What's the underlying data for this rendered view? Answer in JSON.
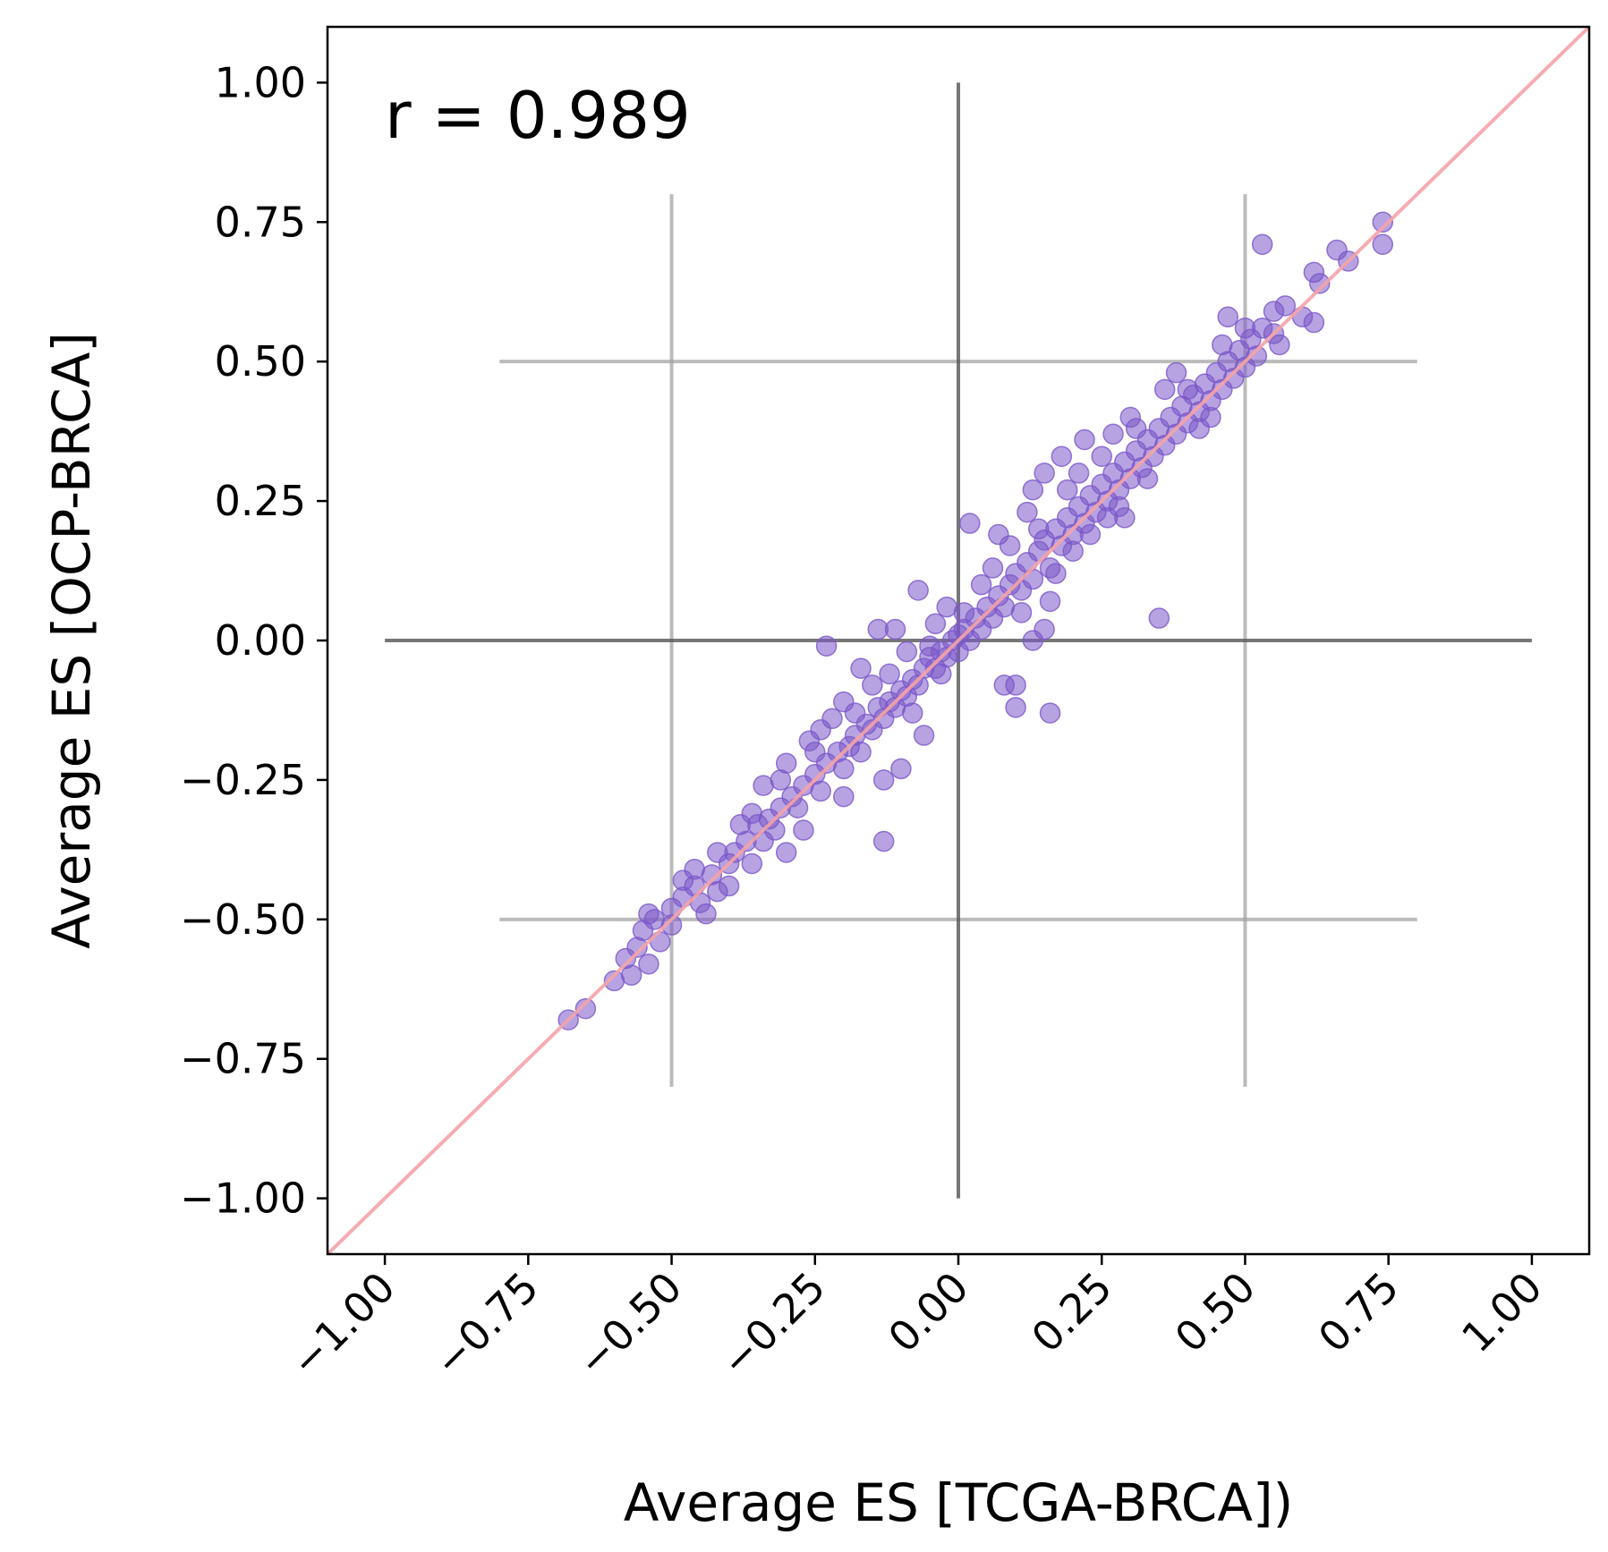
{
  "chart_data": {
    "type": "scatter",
    "xlabel": "Average ES [TCGA-BRCA])",
    "ylabel": "Average ES [OCP-BRCA]",
    "annotation": "r = 0.989",
    "xlim": [
      -1.1,
      1.1
    ],
    "ylim": [
      -1.1,
      1.1
    ],
    "xticks": [
      "−1.00",
      "−0.75",
      "−0.50",
      "−0.25",
      "0.00",
      "0.25",
      "0.50",
      "0.75",
      "1.00"
    ],
    "yticks": [
      "1.00",
      "0.75",
      "0.50",
      "0.25",
      "0.00",
      "−0.25",
      "−0.50",
      "−0.75",
      "−1.00"
    ],
    "grid": false,
    "colors": {
      "points": "#7b57c9",
      "identity_line": "#f4a3a8",
      "center_lines": "#555555",
      "guide_lines": "#9e9e9e"
    },
    "reference_lines": {
      "identity": [
        [
          -1.1,
          -1.1
        ],
        [
          1.1,
          1.1
        ]
      ],
      "center_vertical": {
        "x": 0,
        "y_range": [
          -1.0,
          1.0
        ]
      },
      "center_horizontal": {
        "y": 0,
        "x_range": [
          -1.0,
          1.0
        ]
      },
      "guide_vertical": [
        {
          "x": -0.5,
          "y_range": [
            -0.8,
            0.8
          ]
        },
        {
          "x": 0.5,
          "y_range": [
            -0.8,
            0.8
          ]
        }
      ],
      "guide_horizontal": [
        {
          "y": -0.5,
          "x_range": [
            -0.8,
            0.8
          ]
        },
        {
          "y": 0.5,
          "x_range": [
            -0.8,
            0.8
          ]
        }
      ]
    },
    "series": [
      {
        "points": [
          [
            -0.68,
            -0.68
          ],
          [
            -0.65,
            -0.66
          ],
          [
            -0.6,
            -0.61
          ],
          [
            -0.58,
            -0.57
          ],
          [
            -0.56,
            -0.55
          ],
          [
            -0.55,
            -0.52
          ],
          [
            -0.53,
            -0.5
          ],
          [
            -0.57,
            -0.6
          ],
          [
            -0.54,
            -0.58
          ],
          [
            -0.52,
            -0.54
          ],
          [
            -0.5,
            -0.48
          ],
          [
            -0.48,
            -0.46
          ],
          [
            -0.46,
            -0.44
          ],
          [
            -0.45,
            -0.47
          ],
          [
            -0.43,
            -0.42
          ],
          [
            -0.42,
            -0.45
          ],
          [
            -0.4,
            -0.4
          ],
          [
            -0.39,
            -0.38
          ],
          [
            -0.37,
            -0.36
          ],
          [
            -0.36,
            -0.4
          ],
          [
            -0.35,
            -0.33
          ],
          [
            -0.33,
            -0.32
          ],
          [
            -0.34,
            -0.36
          ],
          [
            -0.3,
            -0.38
          ],
          [
            -0.31,
            -0.3
          ],
          [
            -0.29,
            -0.28
          ],
          [
            -0.28,
            -0.3
          ],
          [
            -0.27,
            -0.26
          ],
          [
            -0.25,
            -0.24
          ],
          [
            -0.24,
            -0.27
          ],
          [
            -0.23,
            -0.22
          ],
          [
            -0.21,
            -0.2
          ],
          [
            -0.2,
            -0.23
          ],
          [
            -0.19,
            -0.19
          ],
          [
            -0.2,
            -0.28
          ],
          [
            -0.18,
            -0.17
          ],
          [
            -0.17,
            -0.2
          ],
          [
            -0.16,
            -0.15
          ],
          [
            -0.15,
            -0.16
          ],
          [
            -0.14,
            -0.12
          ],
          [
            -0.13,
            -0.14
          ],
          [
            -0.12,
            -0.11
          ],
          [
            -0.11,
            -0.12
          ],
          [
            -0.1,
            -0.09
          ],
          [
            -0.1,
            -0.23
          ],
          [
            -0.13,
            -0.25
          ],
          [
            -0.13,
            -0.36
          ],
          [
            -0.09,
            -0.1
          ],
          [
            -0.08,
            -0.07
          ],
          [
            -0.07,
            -0.08
          ],
          [
            -0.06,
            -0.05
          ],
          [
            -0.06,
            -0.17
          ],
          [
            -0.05,
            -0.03
          ],
          [
            -0.04,
            -0.05
          ],
          [
            -0.03,
            -0.02
          ],
          [
            -0.02,
            -0.03
          ],
          [
            -0.01,
            0.0
          ],
          [
            0.0,
            0.01
          ],
          [
            0.0,
            -0.02
          ],
          [
            0.01,
            0.02
          ],
          [
            0.02,
            0.0
          ],
          [
            0.02,
            0.21
          ],
          [
            -0.07,
            0.09
          ],
          [
            -0.14,
            0.02
          ],
          [
            -0.23,
            -0.01
          ],
          [
            -0.05,
            -0.01
          ],
          [
            0.03,
            0.04
          ],
          [
            0.04,
            0.02
          ],
          [
            0.05,
            0.06
          ],
          [
            0.06,
            0.04
          ],
          [
            0.07,
            0.08
          ],
          [
            0.08,
            0.06
          ],
          [
            0.08,
            -0.08
          ],
          [
            0.1,
            -0.08
          ],
          [
            0.1,
            -0.12
          ],
          [
            0.16,
            -0.13
          ],
          [
            0.13,
            0.0
          ],
          [
            0.15,
            0.02
          ],
          [
            0.09,
            0.1
          ],
          [
            0.1,
            0.12
          ],
          [
            0.11,
            0.09
          ],
          [
            0.12,
            0.14
          ],
          [
            0.13,
            0.11
          ],
          [
            0.14,
            0.16
          ],
          [
            0.15,
            0.18
          ],
          [
            0.16,
            0.13
          ],
          [
            0.17,
            0.2
          ],
          [
            0.18,
            0.17
          ],
          [
            0.19,
            0.22
          ],
          [
            0.2,
            0.19
          ],
          [
            0.21,
            0.24
          ],
          [
            0.22,
            0.21
          ],
          [
            0.23,
            0.26
          ],
          [
            0.24,
            0.23
          ],
          [
            0.25,
            0.28
          ],
          [
            0.26,
            0.25
          ],
          [
            0.27,
            0.3
          ],
          [
            0.28,
            0.27
          ],
          [
            0.29,
            0.32
          ],
          [
            0.3,
            0.29
          ],
          [
            0.31,
            0.34
          ],
          [
            0.32,
            0.31
          ],
          [
            0.33,
            0.36
          ],
          [
            0.34,
            0.33
          ],
          [
            0.35,
            0.38
          ],
          [
            0.35,
            0.04
          ],
          [
            0.36,
            0.35
          ],
          [
            0.37,
            0.4
          ],
          [
            0.38,
            0.37
          ],
          [
            0.39,
            0.42
          ],
          [
            0.4,
            0.39
          ],
          [
            0.41,
            0.44
          ],
          [
            0.42,
            0.41
          ],
          [
            0.43,
            0.46
          ],
          [
            0.44,
            0.43
          ],
          [
            0.45,
            0.48
          ],
          [
            0.46,
            0.45
          ],
          [
            0.47,
            0.5
          ],
          [
            0.48,
            0.47
          ],
          [
            0.49,
            0.52
          ],
          [
            0.5,
            0.49
          ],
          [
            0.51,
            0.54
          ],
          [
            0.52,
            0.51
          ],
          [
            0.53,
            0.56
          ],
          [
            0.55,
            0.55
          ],
          [
            0.57,
            0.6
          ],
          [
            0.6,
            0.58
          ],
          [
            0.62,
            0.66
          ],
          [
            0.63,
            0.64
          ],
          [
            0.62,
            0.57
          ],
          [
            0.66,
            0.7
          ],
          [
            0.68,
            0.68
          ],
          [
            0.74,
            0.75
          ],
          [
            0.74,
            0.71
          ],
          [
            0.53,
            0.71
          ],
          [
            0.47,
            0.58
          ],
          [
            0.55,
            0.59
          ],
          [
            0.4,
            0.45
          ],
          [
            0.42,
            0.38
          ],
          [
            0.38,
            0.48
          ],
          [
            0.3,
            0.4
          ],
          [
            0.28,
            0.24
          ],
          [
            0.25,
            0.33
          ],
          [
            0.22,
            0.36
          ],
          [
            0.2,
            0.16
          ],
          [
            0.18,
            0.33
          ],
          [
            0.16,
            0.07
          ],
          [
            0.14,
            0.2
          ],
          [
            0.12,
            0.23
          ],
          [
            0.11,
            0.05
          ],
          [
            0.09,
            0.17
          ],
          [
            0.06,
            0.13
          ],
          [
            -0.02,
            0.06
          ],
          [
            -0.04,
            0.03
          ],
          [
            -0.09,
            -0.02
          ],
          [
            -0.11,
            0.02
          ],
          [
            -0.15,
            -0.08
          ],
          [
            -0.17,
            -0.05
          ],
          [
            -0.2,
            -0.11
          ],
          [
            -0.22,
            -0.14
          ],
          [
            -0.26,
            -0.18
          ],
          [
            -0.3,
            -0.22
          ],
          [
            -0.34,
            -0.26
          ],
          [
            -0.38,
            -0.33
          ],
          [
            -0.42,
            -0.38
          ],
          [
            -0.46,
            -0.41
          ],
          [
            -0.5,
            -0.51
          ],
          [
            -0.54,
            -0.49
          ],
          [
            -0.27,
            -0.34
          ],
          [
            -0.31,
            -0.25
          ],
          [
            -0.24,
            -0.16
          ],
          [
            -0.32,
            -0.34
          ],
          [
            -0.44,
            -0.49
          ],
          [
            -0.48,
            -0.43
          ],
          [
            0.33,
            0.29
          ],
          [
            0.36,
            0.45
          ],
          [
            0.44,
            0.4
          ],
          [
            0.27,
            0.37
          ],
          [
            0.23,
            0.19
          ],
          [
            0.19,
            0.27
          ],
          [
            0.07,
            0.19
          ],
          [
            0.04,
            0.1
          ],
          [
            0.01,
            0.05
          ],
          [
            -0.03,
            -0.06
          ],
          [
            -0.08,
            -0.13
          ],
          [
            -0.12,
            -0.06
          ],
          [
            -0.18,
            -0.13
          ],
          [
            -0.25,
            -0.2
          ],
          [
            -0.36,
            -0.31
          ],
          [
            -0.4,
            -0.44
          ],
          [
            0.5,
            0.56
          ],
          [
            0.56,
            0.53
          ],
          [
            0.46,
            0.53
          ],
          [
            0.31,
            0.38
          ],
          [
            0.29,
            0.22
          ],
          [
            0.17,
            0.12
          ],
          [
            0.13,
            0.27
          ],
          [
            0.15,
            0.3
          ],
          [
            0.21,
            0.3
          ],
          [
            0.26,
            0.22
          ]
        ]
      }
    ]
  }
}
